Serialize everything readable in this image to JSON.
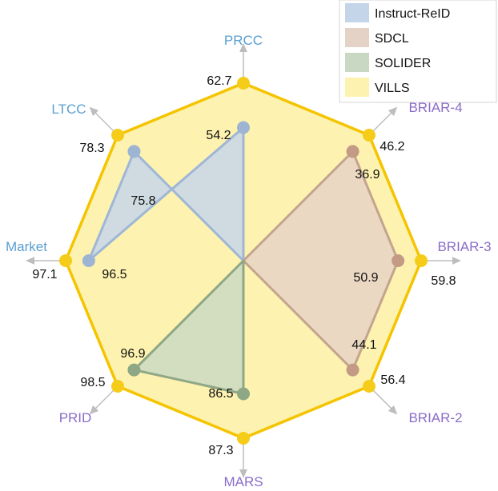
{
  "chart_data": {
    "type": "radar",
    "axes": [
      {
        "label": "PRCC",
        "color": "#5a9fd0"
      },
      {
        "label": "BRIAR-4",
        "color": "#8a6cc8"
      },
      {
        "label": "BRIAR-3",
        "color": "#8a6cc8"
      },
      {
        "label": "BRIAR-2",
        "color": "#8a6cc8"
      },
      {
        "label": "MARS",
        "color": "#8a6cc8"
      },
      {
        "label": "PRID",
        "color": "#8a6cc8"
      },
      {
        "label": "Market",
        "color": "#5a9fd0"
      },
      {
        "label": "LTCC",
        "color": "#5a9fd0"
      }
    ],
    "series": [
      {
        "name": "VILLS",
        "fill": "#fdf2b0",
        "stroke": "#f5c400",
        "point": "#f5cc18",
        "values": [
          1.0,
          1.0,
          1.0,
          1.0,
          1.0,
          1.0,
          1.0,
          1.0
        ],
        "labels": [
          "62.7",
          "46.2",
          "59.8",
          "56.4",
          "87.3",
          "98.5",
          "97.1",
          "78.3"
        ]
      },
      {
        "name": "Instruct-ReID",
        "fill": "#c4d5ea",
        "stroke": "#9fb6d6",
        "point": "#9db4d3",
        "values": [
          0.75,
          null,
          null,
          null,
          null,
          null,
          0.87,
          0.87
        ],
        "labels": [
          "54.2",
          null,
          null,
          null,
          null,
          null,
          "96.5",
          "75.8"
        ]
      },
      {
        "name": "SDCL",
        "fill": "#e5d2c7",
        "stroke": "#c4a48f",
        "point": "#c39a83",
        "values": [
          null,
          0.87,
          0.87,
          0.87,
          null,
          null,
          null,
          null
        ],
        "labels": [
          null,
          "36.9",
          "50.9",
          "44.1",
          null,
          null,
          null,
          null
        ]
      },
      {
        "name": "SOLIDER",
        "fill": "#c9d8c2",
        "stroke": "#8ea785",
        "point": "#8ea785",
        "values": [
          null,
          null,
          null,
          null,
          0.75,
          0.87,
          null,
          null
        ],
        "labels": [
          null,
          null,
          null,
          null,
          "86.5",
          "96.9",
          null,
          null
        ]
      }
    ],
    "legend": {
      "placement": "top-right",
      "order": [
        "Instruct-ReID",
        "SDCL",
        "SOLIDER",
        "VILLS"
      ]
    }
  }
}
